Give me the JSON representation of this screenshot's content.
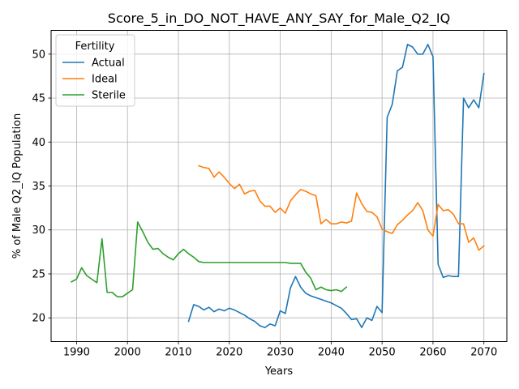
{
  "chart_data": {
    "type": "line",
    "title": "Score_5_in_DO_NOT_HAVE_ANY_SAY_for_Male_Q2_IQ",
    "xlabel": "Years",
    "ylabel": "% of Male Q2_IQ Population",
    "xlim": [
      1985,
      2074.5
    ],
    "ylim": [
      17.3,
      52.7
    ],
    "xticks": [
      1990,
      2000,
      2010,
      2020,
      2030,
      2040,
      2050,
      2060,
      2070
    ],
    "yticks": [
      20,
      25,
      30,
      35,
      40,
      45,
      50
    ],
    "grid": true,
    "legend": {
      "title": "Fertility",
      "placement": "top-left"
    },
    "series": [
      {
        "name": "Actual",
        "color": "#1f77b4",
        "x": [
          2012,
          2013,
          2014,
          2015,
          2016,
          2017,
          2018,
          2019,
          2020,
          2021,
          2022,
          2023,
          2024,
          2025,
          2026,
          2027,
          2028,
          2029,
          2030,
          2031,
          2032,
          2033,
          2034,
          2035,
          2036,
          2037,
          2038,
          2039,
          2040,
          2041,
          2042,
          2043,
          2044,
          2045,
          2046,
          2047,
          2048,
          2049,
          2050,
          2051,
          2052,
          2053,
          2054,
          2055,
          2056,
          2057,
          2058,
          2059,
          2060,
          2061,
          2062,
          2063,
          2064,
          2065,
          2066,
          2067,
          2068,
          2069,
          2070
        ],
        "y": [
          19.6,
          21.5,
          21.3,
          20.9,
          21.2,
          20.7,
          21.0,
          20.8,
          21.1,
          20.9,
          20.6,
          20.3,
          19.9,
          19.6,
          19.1,
          18.9,
          19.3,
          19.1,
          20.8,
          20.5,
          23.4,
          24.7,
          23.5,
          22.8,
          22.5,
          22.3,
          22.1,
          21.9,
          21.7,
          21.4,
          21.1,
          20.5,
          19.8,
          19.9,
          18.9,
          20.0,
          19.7,
          21.3,
          20.6,
          42.8,
          44.3,
          48.1,
          48.5,
          51.1,
          50.8,
          50.0,
          50.0,
          51.1,
          49.7,
          26.1,
          24.6,
          24.8,
          24.7,
          24.7,
          45.0,
          43.9,
          44.8,
          43.9,
          47.8
        ]
      },
      {
        "name": "Ideal",
        "color": "#ff7f0e",
        "x": [
          2014,
          2015,
          2016,
          2017,
          2018,
          2019,
          2020,
          2021,
          2022,
          2023,
          2024,
          2025,
          2026,
          2027,
          2028,
          2029,
          2030,
          2031,
          2032,
          2033,
          2034,
          2035,
          2036,
          2037,
          2038,
          2039,
          2040,
          2041,
          2042,
          2043,
          2044,
          2045,
          2046,
          2047,
          2048,
          2049,
          2050,
          2051,
          2052,
          2053,
          2054,
          2055,
          2056,
          2057,
          2058,
          2059,
          2060,
          2061,
          2062,
          2063,
          2064,
          2065,
          2066,
          2067,
          2068,
          2069,
          2070
        ],
        "y": [
          37.3,
          37.1,
          37.0,
          36.0,
          36.6,
          36.0,
          35.3,
          34.7,
          35.2,
          34.1,
          34.4,
          34.5,
          33.3,
          32.7,
          32.7,
          32.0,
          32.5,
          31.9,
          33.3,
          34.0,
          34.6,
          34.4,
          34.1,
          33.9,
          30.7,
          31.2,
          30.7,
          30.7,
          30.9,
          30.8,
          31.0,
          34.2,
          33.0,
          32.1,
          32.0,
          31.5,
          30.1,
          29.8,
          29.6,
          30.6,
          31.1,
          31.7,
          32.2,
          33.1,
          32.2,
          30.0,
          29.3,
          32.9,
          32.2,
          32.3,
          31.8,
          30.7,
          30.7,
          28.6,
          29.1,
          27.7,
          28.2
        ]
      },
      {
        "name": "Sterile",
        "color": "#2ca02c",
        "x": [
          1989,
          1990,
          1991,
          1992,
          1993,
          1994,
          1995,
          1996,
          1997,
          1998,
          1999,
          2000,
          2001,
          2002,
          2003,
          2004,
          2005,
          2006,
          2007,
          2008,
          2009,
          2010,
          2011,
          2012,
          2013,
          2014,
          2015,
          2016,
          2017,
          2018,
          2019,
          2020,
          2021,
          2022,
          2023,
          2024,
          2025,
          2026,
          2027,
          2028,
          2029,
          2030,
          2031,
          2032,
          2033,
          2034,
          2035,
          2036,
          2037,
          2038,
          2039,
          2040,
          2041,
          2042,
          2043
        ],
        "y": [
          24.1,
          24.4,
          25.7,
          24.8,
          24.4,
          24.0,
          29.0,
          22.9,
          22.9,
          22.4,
          22.4,
          22.8,
          23.2,
          30.9,
          29.8,
          28.6,
          27.8,
          27.9,
          27.3,
          26.9,
          26.6,
          27.3,
          27.8,
          27.3,
          26.9,
          26.4,
          26.3,
          26.3,
          26.3,
          26.3,
          26.3,
          26.3,
          26.3,
          26.3,
          26.3,
          26.3,
          26.3,
          26.3,
          26.3,
          26.3,
          26.3,
          26.3,
          26.3,
          26.2,
          26.2,
          26.2,
          25.2,
          24.5,
          23.2,
          23.5,
          23.2,
          23.1,
          23.2,
          23.0,
          23.5
        ]
      }
    ]
  }
}
